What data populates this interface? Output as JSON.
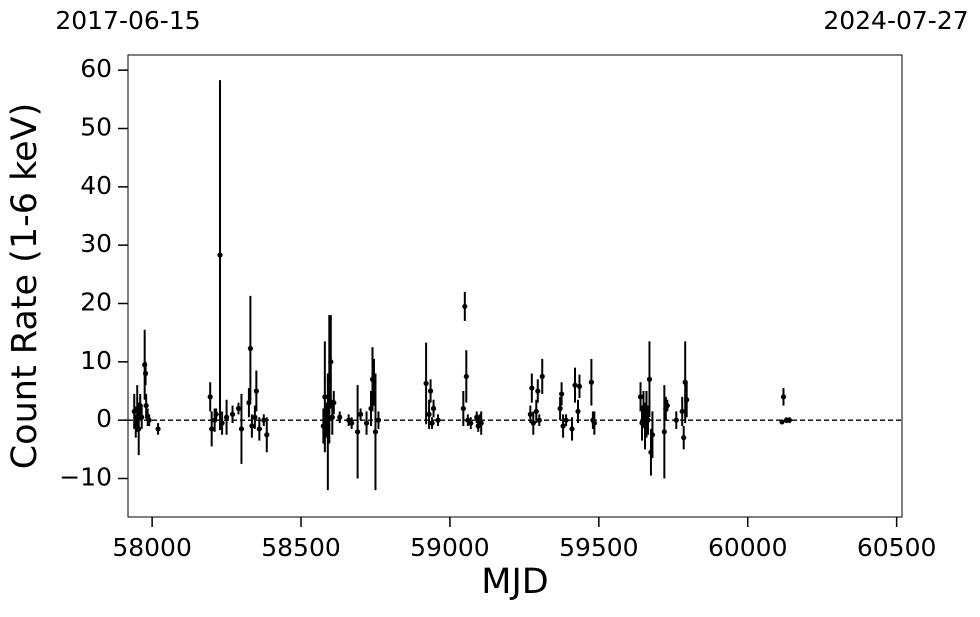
{
  "chart_data": {
    "type": "errorbar",
    "xlabel": "MJD",
    "ylabel": "Count Rate (1-6 keV)",
    "xlim": [
      57919,
      60518
    ],
    "ylim": [
      -16.6,
      62.6
    ],
    "xticks": [
      58000,
      58500,
      59000,
      59500,
      60000,
      60500
    ],
    "yticks": [
      {
        "value": -10,
        "label": "−10"
      },
      0,
      10,
      20,
      30,
      40,
      50,
      60
    ],
    "top_ticks": [
      {
        "value": 57919,
        "label": "2017-06-15"
      },
      {
        "value": 60518,
        "label": "2024-07-27"
      }
    ],
    "reference_line": 0,
    "color": "#000000",
    "x": [
      57940,
      57945,
      57950,
      57955,
      57960,
      57965,
      57975,
      57978,
      57980,
      57985,
      57990,
      58020,
      58195,
      58200,
      58210,
      58215,
      58228,
      58235,
      58250,
      58270,
      58290,
      58300,
      58325,
      58330,
      58335,
      58345,
      58350,
      58360,
      58375,
      58385,
      58575,
      58580,
      58585,
      58590,
      58595,
      58600,
      58605,
      58610,
      58630,
      58660,
      58670,
      58690,
      58700,
      58720,
      58735,
      58740,
      58745,
      58750,
      58760,
      58920,
      58930,
      58935,
      58940,
      58945,
      58960,
      59045,
      59050,
      59055,
      59060,
      59070,
      59090,
      59095,
      59100,
      59105,
      59270,
      59275,
      59280,
      59290,
      59295,
      59300,
      59310,
      59370,
      59375,
      59380,
      59390,
      59410,
      59420,
      59430,
      59435,
      59475,
      59480,
      59485,
      59640,
      59645,
      59650,
      59655,
      59660,
      59665,
      59670,
      59675,
      59680,
      59720,
      59725,
      59730,
      59760,
      59780,
      59785,
      59790,
      59795,
      60115,
      60120,
      60130,
      60140
    ],
    "values": [
      1.5,
      -1,
      2,
      -1.5,
      2.5,
      0.5,
      9.5,
      8,
      2.5,
      0.5,
      0,
      -1.5,
      4,
      -1.5,
      0,
      1,
      28.3,
      -0.5,
      0.5,
      1,
      2,
      -1.5,
      3,
      12.3,
      -1,
      0.5,
      5,
      -1.5,
      0,
      -2.5,
      -1,
      4,
      0,
      -2,
      7,
      10,
      0.5,
      3,
      0.5,
      0,
      -0.5,
      -2,
      1,
      -0.5,
      2,
      7,
      6.5,
      -2,
      0,
      6.3,
      1,
      5,
      -0.5,
      2,
      0,
      2,
      19.5,
      7.5,
      0,
      -0.5,
      0.5,
      -1,
      0,
      -0.5,
      1,
      5.5,
      -0.5,
      1.5,
      5,
      0,
      7.5,
      2,
      4.5,
      -1,
      0,
      -1.5,
      6,
      1.5,
      5.8,
      6.5,
      0,
      -0.5,
      4,
      -0.5,
      2,
      -1,
      1,
      0,
      7,
      -5.5,
      -2.5,
      -2,
      2,
      2.5,
      0,
      1.5,
      -3,
      6.5,
      3.5,
      -0.3,
      4,
      0,
      0
    ],
    "errors": [
      3,
      2,
      4,
      4.5,
      2,
      2,
      6,
      2,
      2,
      1.5,
      1,
      1,
      2.5,
      3,
      2,
      1,
      30,
      2,
      3,
      1.5,
      1,
      6,
      2.5,
      9,
      2,
      2,
      3.5,
      2,
      1,
      3,
      3,
      9.5,
      3,
      10,
      11,
      8,
      3,
      2,
      1,
      1,
      1,
      8,
      1,
      2,
      3,
      5.5,
      4,
      10,
      1.5,
      7,
      2.5,
      2,
      1,
      1.5,
      1,
      3,
      2.5,
      4.5,
      1,
      1,
      1,
      1,
      1,
      2,
      1.5,
      2.5,
      2,
      2,
      2,
      1,
      3,
      2,
      2,
      2,
      1,
      2,
      3,
      2,
      2,
      4,
      1.5,
      2,
      2.5,
      3,
      3,
      4,
      4,
      2.5,
      6.5,
      4,
      4,
      8,
      2,
      1,
      1.5,
      2.5,
      2,
      7,
      3,
      0.3,
      1.5,
      0.5,
      0.5
    ]
  }
}
